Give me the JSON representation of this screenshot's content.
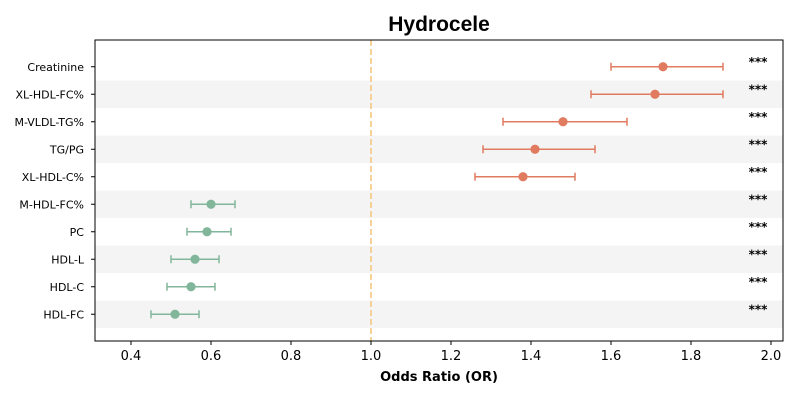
{
  "chart_data": {
    "type": "scatter",
    "subtype": "forest-plot",
    "title": "Hydrocele",
    "xlabel": "Odds Ratio (OR)",
    "ylabel": "",
    "xlim": [
      0.31,
      2.03
    ],
    "xticks": [
      0.4,
      0.6,
      0.8,
      1.0,
      1.2,
      1.4,
      1.6,
      1.8,
      2.0
    ],
    "xtick_labels": [
      "0.4",
      "0.6",
      "0.8",
      "1.0",
      "1.2",
      "1.4",
      "1.6",
      "1.8",
      "2.0"
    ],
    "reference_line": 1.0,
    "colors": {
      "risk": "#e07b5f",
      "protective": "#82b69b",
      "reference": "#f5c77e",
      "band": "#f4f4f4"
    },
    "points": [
      {
        "label": "Creatinine",
        "or": 1.73,
        "lower": 1.6,
        "upper": 1.88,
        "sig": "***",
        "group": "risk"
      },
      {
        "label": "XL-HDL-FC%",
        "or": 1.71,
        "lower": 1.55,
        "upper": 1.88,
        "sig": "***",
        "group": "risk"
      },
      {
        "label": "M-VLDL-TG%",
        "or": 1.48,
        "lower": 1.33,
        "upper": 1.64,
        "sig": "***",
        "group": "risk"
      },
      {
        "label": "TG/PG",
        "or": 1.41,
        "lower": 1.28,
        "upper": 1.56,
        "sig": "***",
        "group": "risk"
      },
      {
        "label": "XL-HDL-C%",
        "or": 1.38,
        "lower": 1.26,
        "upper": 1.51,
        "sig": "***",
        "group": "risk"
      },
      {
        "label": "M-HDL-FC%",
        "or": 0.6,
        "lower": 0.55,
        "upper": 0.66,
        "sig": "***",
        "group": "protective"
      },
      {
        "label": "PC",
        "or": 0.59,
        "lower": 0.54,
        "upper": 0.65,
        "sig": "***",
        "group": "protective"
      },
      {
        "label": "HDL-L",
        "or": 0.56,
        "lower": 0.5,
        "upper": 0.62,
        "sig": "***",
        "group": "protective"
      },
      {
        "label": "HDL-C",
        "or": 0.55,
        "lower": 0.49,
        "upper": 0.61,
        "sig": "***",
        "group": "protective"
      },
      {
        "label": "HDL-FC",
        "or": 0.51,
        "lower": 0.45,
        "upper": 0.57,
        "sig": "***",
        "group": "protective"
      }
    ]
  }
}
